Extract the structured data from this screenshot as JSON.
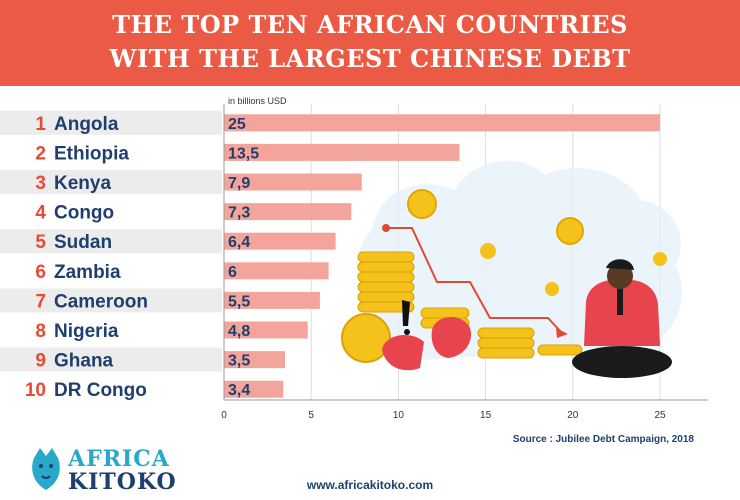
{
  "header": {
    "title_line1": "THE TOP TEN AFRICAN COUNTRIES",
    "title_line2": "WITH THE LARGEST CHINESE DEBT"
  },
  "chart_data": {
    "type": "bar",
    "orientation": "horizontal",
    "unit_label": "in billions USD",
    "categories": [
      "Angola",
      "Ethiopia",
      "Kenya",
      "Congo",
      "Sudan",
      "Zambia",
      "Cameroon",
      "Nigeria",
      "Ghana",
      "DR Congo"
    ],
    "ranks": [
      "1",
      "2",
      "3",
      "4",
      "5",
      "6",
      "7",
      "8",
      "9",
      "10"
    ],
    "values": [
      25,
      13.5,
      7.9,
      7.3,
      6.4,
      6,
      5.5,
      4.8,
      3.5,
      3.4
    ],
    "value_labels": [
      "25",
      "13,5",
      "7,9",
      "7,3",
      "6,4",
      "6",
      "5,5",
      "4,8",
      "3,5",
      "3,4"
    ],
    "x_ticks": [
      0,
      5,
      10,
      15,
      20,
      25
    ],
    "xlim": [
      0,
      27
    ],
    "grid": true,
    "bar_color": "#f3a59b",
    "row_stripe_color": "#ececec"
  },
  "footer": {
    "source": "Source : Jubilee Debt Campaign, 2018",
    "website": "www.africakitoko.com",
    "logo_line1": "AFRICA",
    "logo_line2": "KITOKO"
  }
}
